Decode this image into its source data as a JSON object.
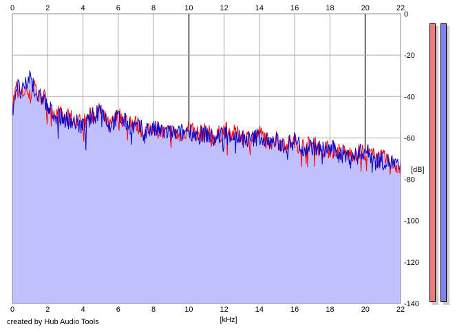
{
  "chart_data": {
    "type": "area",
    "xlabel": "[kHz]",
    "ylabel": "[dB]",
    "xlim": [
      0,
      22
    ],
    "ylim": [
      -140,
      0
    ],
    "x_ticks": [
      0,
      2,
      4,
      6,
      8,
      10,
      12,
      14,
      16,
      18,
      20,
      22
    ],
    "y_ticks": [
      0,
      -20,
      -40,
      -60,
      -80,
      -100,
      -120,
      -140
    ],
    "grid": true,
    "fill_color": "#c0c0ff",
    "series": [
      {
        "color": "#ff0000",
        "x": [
          0.0,
          0.25,
          0.5,
          0.75,
          1.0,
          1.25,
          1.5,
          1.75,
          2.0,
          2.5,
          3.0,
          3.5,
          4.0,
          4.5,
          5.0,
          5.5,
          6.0,
          6.5,
          7.0,
          7.5,
          8.0,
          8.5,
          9.0,
          9.5,
          10.0,
          10.5,
          11.0,
          11.5,
          12.0,
          12.5,
          13.0,
          13.5,
          14.0,
          14.5,
          15.0,
          15.5,
          16.0,
          16.5,
          17.0,
          17.5,
          18.0,
          18.5,
          19.0,
          19.5,
          20.0,
          20.5,
          21.0,
          21.5,
          22.0
        ],
        "values": [
          -44,
          -35,
          -40,
          -36,
          -41,
          -33,
          -42,
          -39,
          -45,
          -48,
          -50,
          -51,
          -53,
          -49,
          -47,
          -55,
          -49,
          -52,
          -53,
          -57,
          -54,
          -58,
          -57,
          -59,
          -55,
          -58,
          -57,
          -60,
          -56,
          -58,
          -59,
          -60,
          -58,
          -61,
          -61,
          -63,
          -62,
          -64,
          -63,
          -65,
          -66,
          -66,
          -68,
          -67,
          -67,
          -69,
          -70,
          -72,
          -74
        ]
      },
      {
        "color": "#0000cc",
        "x": [
          0.0,
          0.25,
          0.5,
          0.75,
          1.0,
          1.25,
          1.5,
          1.75,
          2.0,
          2.5,
          3.0,
          3.5,
          4.0,
          4.5,
          5.0,
          5.5,
          6.0,
          6.5,
          7.0,
          7.5,
          8.0,
          8.5,
          9.0,
          9.5,
          10.0,
          10.5,
          11.0,
          11.5,
          12.0,
          12.5,
          13.0,
          13.5,
          14.0,
          14.5,
          15.0,
          15.5,
          16.0,
          16.5,
          17.0,
          17.5,
          18.0,
          18.5,
          19.0,
          19.5,
          20.0,
          20.5,
          21.0,
          21.5,
          22.0
        ],
        "values": [
          -47,
          -34,
          -39,
          -35,
          -30,
          -36,
          -41,
          -40,
          -46,
          -49,
          -51,
          -52,
          -55,
          -50,
          -45,
          -54,
          -50,
          -53,
          -55,
          -56,
          -56,
          -57,
          -58,
          -58,
          -56,
          -59,
          -58,
          -61,
          -57,
          -59,
          -60,
          -61,
          -59,
          -62,
          -62,
          -64,
          -61,
          -65,
          -64,
          -66,
          -65,
          -67,
          -69,
          -68,
          -66,
          -70,
          -71,
          -72,
          -75
        ]
      }
    ]
  },
  "credit": "created by Hub Audio Tools",
  "meters": [
    {
      "color": "#f07878",
      "level": 1.0
    },
    {
      "color": "#8080f0",
      "level": 1.0
    }
  ]
}
